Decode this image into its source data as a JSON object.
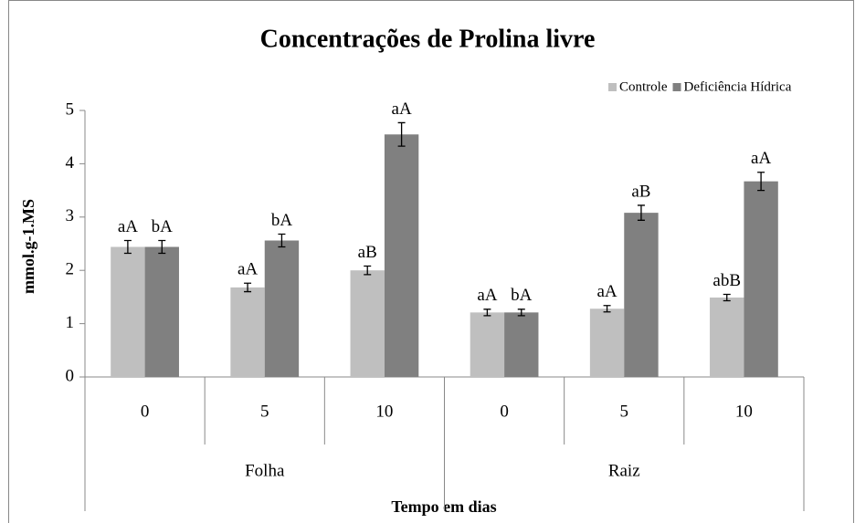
{
  "chart_data": {
    "type": "bar",
    "title": "Concentrações de Prolina livre",
    "x_label": "Tempo em dias",
    "y_label": "mmol.g-1.MS",
    "groups": [
      {
        "label": "Folha",
        "categories": [
          "0",
          "5",
          "10"
        ]
      },
      {
        "label": "Raiz",
        "categories": [
          "0",
          "5",
          "10"
        ]
      }
    ],
    "series": [
      {
        "name": "Controle",
        "color": "#bfbfbf",
        "values": [
          2.44,
          1.68,
          2.0,
          1.21,
          1.28,
          1.49
        ],
        "errors": [
          0.12,
          0.08,
          0.08,
          0.06,
          0.06,
          0.06
        ],
        "letters": [
          "aA",
          "aA",
          "aB",
          "aA",
          "aA",
          "abB"
        ]
      },
      {
        "name": "Deficiência Hídrica",
        "color": "#808080",
        "values": [
          2.44,
          2.56,
          4.55,
          1.21,
          3.08,
          3.67
        ],
        "errors": [
          0.12,
          0.12,
          0.22,
          0.06,
          0.14,
          0.17
        ],
        "letters": [
          "bA",
          "bA",
          "aA",
          "bA",
          "aB",
          "aA"
        ]
      }
    ],
    "ylim": [
      0,
      5
    ],
    "yticks": [
      0,
      1,
      2,
      3,
      4,
      5
    ],
    "legend": "top-right"
  }
}
